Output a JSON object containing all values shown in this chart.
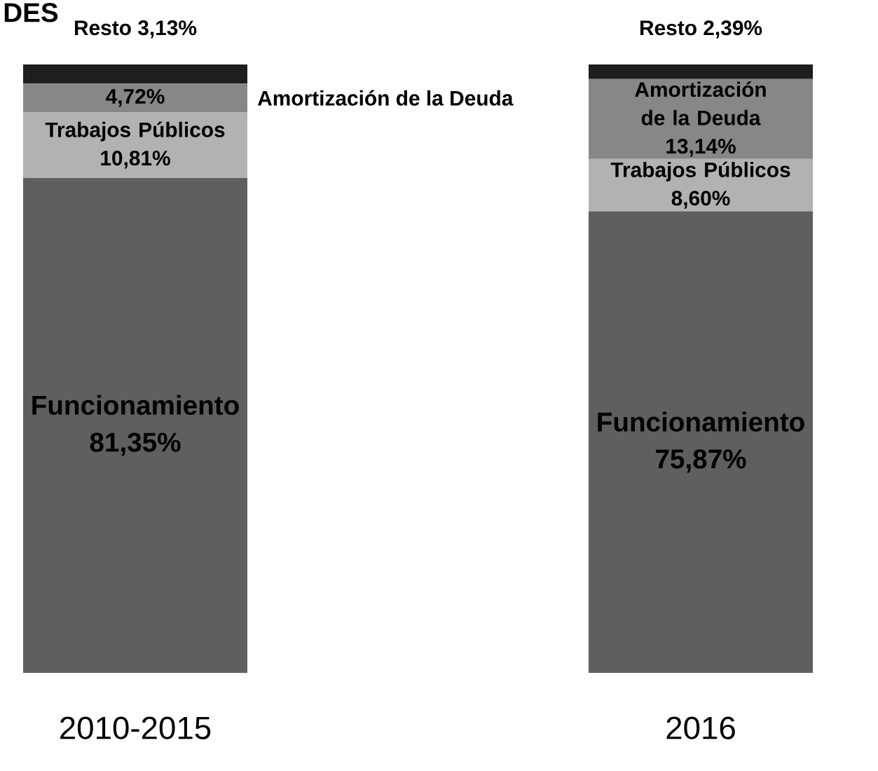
{
  "chart_data": {
    "type": "bar",
    "stacked": true,
    "title": "DES",
    "categories": [
      "2010-2015",
      "2016"
    ],
    "series": [
      {
        "name": "Funcionamiento",
        "color": "#5f5f5f",
        "values": [
          81.35,
          75.87
        ],
        "value_labels": [
          "81,35%",
          "75,87%"
        ]
      },
      {
        "name": "Trabajos Públicos",
        "color": "#b2b2b2",
        "values": [
          10.81,
          8.6
        ],
        "value_labels": [
          "10,81%",
          "8,60%"
        ]
      },
      {
        "name": "Amortización de la Deuda",
        "color": "#878787",
        "values": [
          4.72,
          13.14
        ],
        "value_labels": [
          "4,72%",
          "13,14%"
        ]
      },
      {
        "name": "Resto",
        "color": "#1e1e1e",
        "values": [
          3.13,
          2.39
        ],
        "value_labels": [
          "3,13%",
          "2,39%"
        ]
      }
    ]
  }
}
